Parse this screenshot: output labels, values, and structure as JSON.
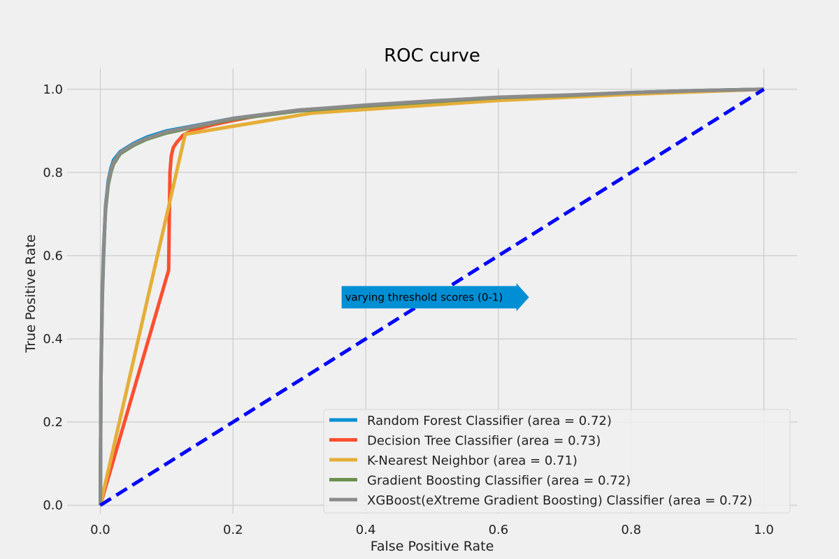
{
  "chart_data": {
    "type": "line",
    "title": "ROC curve",
    "xlabel": "False Positive Rate",
    "ylabel": "True Positive Rate",
    "xlim": [
      -0.05,
      1.05
    ],
    "ylim": [
      -0.02,
      1.05
    ],
    "xticks": [
      0.0,
      0.2,
      0.4,
      0.6,
      0.8,
      1.0
    ],
    "yticks": [
      0.0,
      0.2,
      0.4,
      0.6,
      0.8,
      1.0
    ],
    "xtick_labels": [
      "0.0",
      "0.2",
      "0.4",
      "0.6",
      "0.8",
      "1.0"
    ],
    "ytick_labels": [
      "0.0",
      "0.2",
      "0.4",
      "0.6",
      "0.8",
      "1.0"
    ],
    "grid": true,
    "legend_position": "lower-right",
    "series": [
      {
        "name": "Random Forest Classifier (area = 0.72)",
        "color": "#008fd5",
        "x": [
          0.0,
          0.001,
          0.003,
          0.005,
          0.008,
          0.012,
          0.016,
          0.02,
          0.03,
          0.04,
          0.05,
          0.07,
          0.1,
          0.15,
          0.2,
          0.3,
          0.4,
          0.5,
          0.6,
          0.7,
          0.8,
          0.9,
          1.0
        ],
        "y": [
          0.0,
          0.3,
          0.5,
          0.6,
          0.72,
          0.78,
          0.81,
          0.83,
          0.85,
          0.86,
          0.87,
          0.885,
          0.9,
          0.915,
          0.93,
          0.95,
          0.96,
          0.97,
          0.98,
          0.985,
          0.992,
          0.997,
          1.0
        ]
      },
      {
        "name": "Decision Tree Classifier (area = 0.73)",
        "color": "#fc4f30",
        "x": [
          0.0,
          0.103,
          0.104,
          0.105,
          0.107,
          0.11,
          0.115,
          0.125,
          0.14,
          0.17,
          0.2,
          0.25,
          0.3,
          0.4,
          0.5,
          0.6,
          0.7,
          0.8,
          0.9,
          1.0
        ],
        "y": [
          0.0,
          0.565,
          0.7,
          0.8,
          0.84,
          0.86,
          0.872,
          0.89,
          0.902,
          0.915,
          0.925,
          0.94,
          0.95,
          0.96,
          0.97,
          0.978,
          0.985,
          0.99,
          0.995,
          1.0
        ]
      },
      {
        "name": "K-Nearest Neighbor (area = 0.71)",
        "color": "#e5ae38",
        "x": [
          0.0,
          0.128,
          0.32,
          0.6,
          0.8,
          1.0
        ],
        "y": [
          0.0,
          0.892,
          0.943,
          0.973,
          0.988,
          1.0
        ]
      },
      {
        "name": "Gradient Boosting Classifier (area = 0.72)",
        "color": "#6d904f",
        "x": [
          0.0,
          0.001,
          0.003,
          0.005,
          0.008,
          0.012,
          0.016,
          0.02,
          0.03,
          0.04,
          0.05,
          0.07,
          0.1,
          0.15,
          0.2,
          0.3,
          0.4,
          0.5,
          0.6,
          0.7,
          0.8,
          0.9,
          1.0
        ],
        "y": [
          0.0,
          0.32,
          0.52,
          0.62,
          0.71,
          0.77,
          0.8,
          0.82,
          0.845,
          0.855,
          0.865,
          0.88,
          0.895,
          0.912,
          0.928,
          0.948,
          0.96,
          0.97,
          0.98,
          0.985,
          0.992,
          0.997,
          1.0
        ]
      },
      {
        "name": "XGBoost(eXtreme Gradient Boosting) Classifier (area = 0.72)",
        "color": "#8b8b8b",
        "x": [
          0.0,
          0.001,
          0.003,
          0.005,
          0.008,
          0.012,
          0.016,
          0.02,
          0.03,
          0.04,
          0.05,
          0.07,
          0.1,
          0.15,
          0.2,
          0.3,
          0.4,
          0.5,
          0.6,
          0.7,
          0.8,
          0.9,
          1.0
        ],
        "y": [
          0.0,
          0.3,
          0.5,
          0.61,
          0.72,
          0.775,
          0.805,
          0.825,
          0.848,
          0.858,
          0.868,
          0.882,
          0.898,
          0.914,
          0.93,
          0.95,
          0.962,
          0.972,
          0.981,
          0.986,
          0.992,
          0.997,
          1.0
        ]
      }
    ],
    "reference_line": {
      "x": [
        0.0,
        1.0
      ],
      "y": [
        0.0,
        1.0
      ],
      "color": "#0000ff",
      "style": "dashed"
    },
    "annotation": {
      "text": "varying threshold scores (0-1)",
      "x": 0.37,
      "y": 0.5,
      "color": "#008fd5",
      "shape": "right-arrow"
    }
  }
}
